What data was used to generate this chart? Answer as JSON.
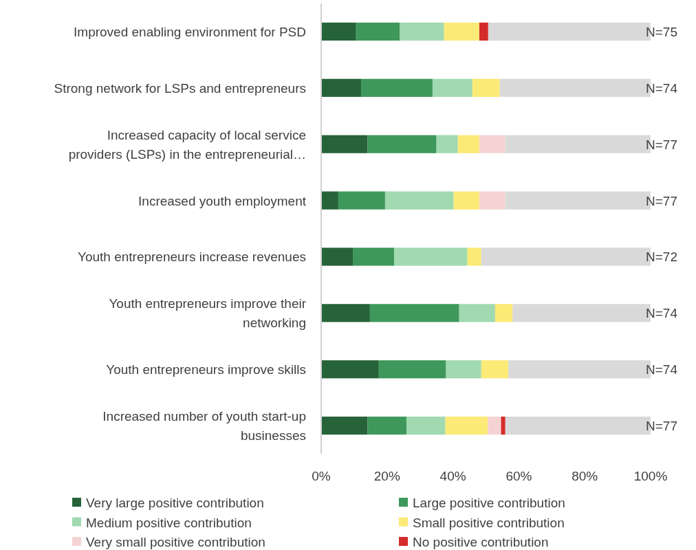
{
  "chart_data": {
    "type": "bar",
    "orientation": "horizontal",
    "stacked": true,
    "categories": [
      "Improved enabling environment for PSD",
      "Strong network for LSPs and entrepreneurs",
      "Increased capacity of local service providers (LSPs) in the entrepreneurial…",
      "Increased youth employment",
      "Youth entrepreneurs increase revenues",
      "Youth entrepreneurs improve their networking",
      "Youth entrepreneurs improve skills",
      "Increased number of youth start-up businesses"
    ],
    "series": [
      {
        "name": "Very large positive contribution",
        "color": "#276339",
        "values": [
          10.6,
          12.1,
          14.1,
          5.2,
          9.6,
          14.8,
          17.5,
          14.1
        ]
      },
      {
        "name": "Large positive contribution",
        "color": "#3f985b",
        "values": [
          13.3,
          21.7,
          20.9,
          14.2,
          12.6,
          27.1,
          20.4,
          11.8
        ]
      },
      {
        "name": "Medium positive contribution",
        "color": "#a1d9b0",
        "values": [
          13.4,
          12.1,
          6.5,
          20.8,
          22.2,
          10.9,
          10.7,
          11.8
        ]
      },
      {
        "name": "Small positive contribution",
        "color": "#fcea76",
        "values": [
          10.7,
          8.3,
          6.5,
          7.8,
          4.2,
          5.3,
          8.2,
          12.9
        ]
      },
      {
        "name": "Very small positive contribution",
        "color": "#f6d3d3",
        "values": [
          0,
          0,
          7.9,
          7.9,
          0,
          0,
          0,
          4.0
        ]
      },
      {
        "name": "No positive contribution",
        "color": "#d42c2a",
        "values": [
          2.7,
          0,
          0,
          0,
          0,
          0,
          0,
          1.3
        ]
      },
      {
        "color": "#d9d9d9",
        "values": [
          49.3,
          45.8,
          44.1,
          44.1,
          51.4,
          41.9,
          43.2,
          44.1
        ]
      }
    ],
    "xlim": [
      0,
      100
    ],
    "xticks": [
      {
        "value": 0,
        "label": "0%"
      },
      {
        "value": 20,
        "label": "20%"
      },
      {
        "value": 40,
        "label": "40%"
      },
      {
        "value": 60,
        "label": "60%"
      },
      {
        "value": 80,
        "label": "80%"
      },
      {
        "value": 100,
        "label": "100%"
      }
    ],
    "annotations": [
      "N=75",
      "N=74",
      "N=77",
      "N=77",
      "N=72",
      "N=74",
      "N=74",
      "N=77"
    ],
    "grid": false,
    "legend": "bottom"
  }
}
